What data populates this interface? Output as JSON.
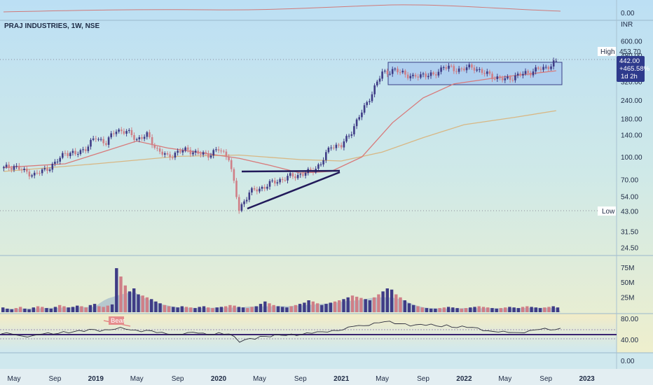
{
  "symbol_title": "PRAJ INDUSTRIES, 1W, NSE",
  "currency": "INR",
  "labels": {
    "high": "High",
    "low": "Low",
    "high_value": "453.70",
    "low_value": "43.00",
    "price_box": [
      "442.00",
      "+465.58%",
      "1d 2h"
    ],
    "bear_tag": "Bear"
  },
  "colors": {
    "candle_up": "#3f3c86",
    "candle_down": "#cf7f87",
    "ma_fast": "#d87a7a",
    "ma_slow": "#d8b784",
    "pattern": "#221a5a",
    "box_fill": "#9fc0ee",
    "box_stroke": "#3a3f86",
    "vol_area": "#8ea9c8",
    "rsi_line": "#2d2d3d",
    "rsi_level": "#3a2470",
    "price_box_bg": "#2e3a8c"
  },
  "chart_data": [
    {
      "type": "candlestick",
      "scale": "log",
      "y_ticks": [
        "600.00",
        "480.00",
        "320.00",
        "240.00",
        "180.00",
        "140.00",
        "100.00",
        "70.00",
        "54.00",
        "43.00",
        "31.50",
        "24.50"
      ],
      "x_ticks": [
        "May",
        "Sep",
        "2019",
        "May",
        "Sep",
        "2020",
        "May",
        "Sep",
        "2021",
        "May",
        "Sep",
        "2022",
        "May",
        "Sep",
        "2023"
      ],
      "close_series": [
        {
          "date": "2018-04",
          "close": 84
        },
        {
          "date": "2018-05",
          "close": 87
        },
        {
          "date": "2018-06",
          "close": 80
        },
        {
          "date": "2018-07",
          "close": 76
        },
        {
          "date": "2018-08",
          "close": 82
        },
        {
          "date": "2018-09",
          "close": 90
        },
        {
          "date": "2018-10",
          "close": 108
        },
        {
          "date": "2018-11",
          "close": 104
        },
        {
          "date": "2018-12",
          "close": 115
        },
        {
          "date": "2019-01",
          "close": 135
        },
        {
          "date": "2019-02",
          "close": 125
        },
        {
          "date": "2019-03",
          "close": 152
        },
        {
          "date": "2019-04",
          "close": 148
        },
        {
          "date": "2019-05",
          "close": 132
        },
        {
          "date": "2019-06",
          "close": 140
        },
        {
          "date": "2019-07",
          "close": 112
        },
        {
          "date": "2019-08",
          "close": 100
        },
        {
          "date": "2019-09",
          "close": 108
        },
        {
          "date": "2019-10",
          "close": 112
        },
        {
          "date": "2019-11",
          "close": 105
        },
        {
          "date": "2019-12",
          "close": 104
        },
        {
          "date": "2020-01",
          "close": 112
        },
        {
          "date": "2020-02",
          "close": 100
        },
        {
          "date": "2020-03",
          "close": 44
        },
        {
          "date": "2020-04",
          "close": 58
        },
        {
          "date": "2020-05",
          "close": 61
        },
        {
          "date": "2020-06",
          "close": 66
        },
        {
          "date": "2020-07",
          "close": 70
        },
        {
          "date": "2020-08",
          "close": 74
        },
        {
          "date": "2020-09",
          "close": 76
        },
        {
          "date": "2020-10",
          "close": 80
        },
        {
          "date": "2020-11",
          "close": 90
        },
        {
          "date": "2020-12",
          "close": 120
        },
        {
          "date": "2021-01",
          "close": 118
        },
        {
          "date": "2021-02",
          "close": 150
        },
        {
          "date": "2021-03",
          "close": 200
        },
        {
          "date": "2021-04",
          "close": 270
        },
        {
          "date": "2021-05",
          "close": 370
        },
        {
          "date": "2021-06",
          "close": 380
        },
        {
          "date": "2021-07",
          "close": 372
        },
        {
          "date": "2021-08",
          "close": 340
        },
        {
          "date": "2021-09",
          "close": 362
        },
        {
          "date": "2021-10",
          "close": 350
        },
        {
          "date": "2021-11",
          "close": 410
        },
        {
          "date": "2021-12",
          "close": 385
        },
        {
          "date": "2022-01",
          "close": 395
        },
        {
          "date": "2022-02",
          "close": 400
        },
        {
          "date": "2022-03",
          "close": 365
        },
        {
          "date": "2022-04",
          "close": 345
        },
        {
          "date": "2022-05",
          "close": 330
        },
        {
          "date": "2022-06",
          "close": 350
        },
        {
          "date": "2022-07",
          "close": 365
        },
        {
          "date": "2022-08",
          "close": 385
        },
        {
          "date": "2022-09",
          "close": 398
        },
        {
          "date": "2022-10",
          "close": 442
        }
      ],
      "ma_fast": [
        {
          "date": "2018-04",
          "value": 85
        },
        {
          "date": "2018-10",
          "value": 90
        },
        {
          "date": "2019-02",
          "value": 110
        },
        {
          "date": "2019-05",
          "value": 128
        },
        {
          "date": "2019-08",
          "value": 115
        },
        {
          "date": "2019-12",
          "value": 105
        },
        {
          "date": "2020-03",
          "value": 98
        },
        {
          "date": "2020-06",
          "value": 88
        },
        {
          "date": "2020-09",
          "value": 78
        },
        {
          "date": "2020-12",
          "value": 80
        },
        {
          "date": "2021-03",
          "value": 100
        },
        {
          "date": "2021-06",
          "value": 170
        },
        {
          "date": "2021-09",
          "value": 250
        },
        {
          "date": "2021-12",
          "value": 310
        },
        {
          "date": "2022-04",
          "value": 340
        },
        {
          "date": "2022-10",
          "value": 380
        }
      ],
      "ma_slow": [
        {
          "date": "2018-04",
          "value": 80
        },
        {
          "date": "2019-01",
          "value": 90
        },
        {
          "date": "2019-09",
          "value": 101
        },
        {
          "date": "2020-03",
          "value": 103
        },
        {
          "date": "2020-09",
          "value": 96
        },
        {
          "date": "2021-01",
          "value": 94
        },
        {
          "date": "2021-05",
          "value": 108
        },
        {
          "date": "2021-09",
          "value": 135
        },
        {
          "date": "2022-01",
          "value": 165
        },
        {
          "date": "2022-06",
          "value": 185
        },
        {
          "date": "2022-10",
          "value": 205
        }
      ]
    },
    {
      "type": "bar",
      "y_ticks": [
        "75M",
        "50M",
        "25M"
      ],
      "values_m": [
        8,
        6,
        5,
        7,
        9,
        6,
        5,
        8,
        10,
        9,
        7,
        6,
        9,
        12,
        10,
        8,
        9,
        11,
        10,
        8,
        12,
        14,
        10,
        9,
        11,
        13,
        74,
        60,
        45,
        35,
        40,
        30,
        28,
        25,
        22,
        18,
        15,
        12,
        10,
        9,
        8,
        10,
        9,
        8,
        7,
        9,
        10,
        8,
        7,
        8,
        9,
        10,
        12,
        11,
        9,
        8,
        7,
        9,
        10,
        14,
        18,
        15,
        12,
        10,
        9,
        8,
        10,
        12,
        14,
        16,
        20,
        18,
        15,
        12,
        14,
        16,
        18,
        20,
        22,
        25,
        28,
        26,
        24,
        22,
        20,
        25,
        30,
        35,
        40,
        38,
        30,
        25,
        20,
        15,
        12,
        10,
        8,
        7,
        6,
        6,
        7,
        8,
        9,
        8,
        7,
        6,
        7,
        8,
        9,
        10,
        9,
        8,
        7,
        6,
        7,
        8,
        9,
        8,
        7,
        9,
        10,
        9,
        8,
        7,
        8,
        9,
        10,
        8
      ]
    },
    {
      "type": "line",
      "y_ticks": [
        "80.00",
        "40.00",
        "0.00"
      ],
      "levels": [
        60,
        50
      ],
      "rsi": [
        52,
        50,
        48,
        47,
        50,
        53,
        58,
        56,
        60,
        63,
        61,
        66,
        64,
        60,
        63,
        55,
        50,
        53,
        55,
        52,
        51,
        55,
        50,
        32,
        40,
        44,
        46,
        48,
        50,
        52,
        53,
        56,
        63,
        62,
        70,
        75,
        80,
        82,
        80,
        78,
        74,
        76,
        72,
        74,
        70,
        68,
        66,
        62,
        56,
        54,
        57,
        60,
        62,
        64,
        66
      ]
    }
  ]
}
